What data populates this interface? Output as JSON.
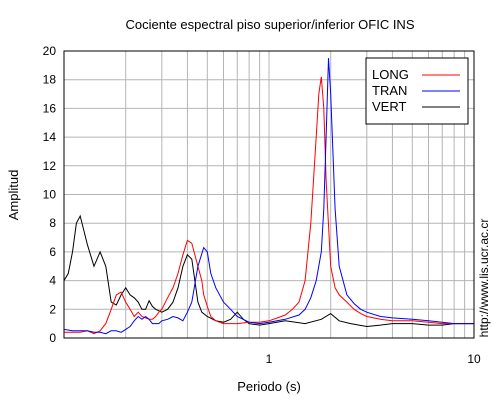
{
  "chart_data": {
    "type": "line",
    "title": "Cociente espectral piso superior/inferior  OFIC INS",
    "xlabel": "Periodo (s)",
    "ylabel": "Amplitud",
    "xscale": "log",
    "xlim": [
      0.1,
      10
    ],
    "ylim": [
      0,
      20
    ],
    "x_tick_labels": [
      "1",
      "10"
    ],
    "y_tick_labels": [
      "0",
      "2",
      "4",
      "6",
      "8",
      "10",
      "12",
      "14",
      "16",
      "18",
      "20"
    ],
    "grid": true,
    "legend_position": "top-right",
    "side_text": "http://www.lis.ucr.ac.cr",
    "series": [
      {
        "name": "LONG",
        "color": "#ff0000",
        "x": [
          0.1,
          0.11,
          0.12,
          0.13,
          0.14,
          0.15,
          0.16,
          0.17,
          0.18,
          0.19,
          0.2,
          0.21,
          0.22,
          0.23,
          0.24,
          0.25,
          0.26,
          0.27,
          0.28,
          0.29,
          0.3,
          0.32,
          0.34,
          0.36,
          0.38,
          0.4,
          0.42,
          0.45,
          0.47,
          0.48,
          0.5,
          0.52,
          0.55,
          0.6,
          0.65,
          0.7,
          0.8,
          0.9,
          1.0,
          1.1,
          1.2,
          1.3,
          1.4,
          1.5,
          1.6,
          1.7,
          1.75,
          1.8,
          1.85,
          1.9,
          2.0,
          2.1,
          2.2,
          2.4,
          2.6,
          2.8,
          3.0,
          3.5,
          4.0,
          5.0,
          6.0,
          7.0,
          8.0,
          9.0,
          10.0
        ],
        "y": [
          0.4,
          0.4,
          0.4,
          0.5,
          0.3,
          0.5,
          1.0,
          2.0,
          3.0,
          3.2,
          2.5,
          2.0,
          1.5,
          1.8,
          1.5,
          1.4,
          1.3,
          1.3,
          1.5,
          1.8,
          2.0,
          2.8,
          3.5,
          4.5,
          5.8,
          6.8,
          6.6,
          5.0,
          4.0,
          3.0,
          2.2,
          1.5,
          1.2,
          1.0,
          1.0,
          1.0,
          1.1,
          1.1,
          1.2,
          1.4,
          1.6,
          2.0,
          2.5,
          4.0,
          8.0,
          14.0,
          17.0,
          18.2,
          16.0,
          11.0,
          5.0,
          3.5,
          3.0,
          2.5,
          2.0,
          1.7,
          1.5,
          1.3,
          1.2,
          1.2,
          1.1,
          1.0,
          1.0,
          1.0,
          1.0
        ]
      },
      {
        "name": "TRAN",
        "color": "#0000ff",
        "x": [
          0.1,
          0.11,
          0.12,
          0.13,
          0.14,
          0.15,
          0.16,
          0.17,
          0.18,
          0.19,
          0.2,
          0.21,
          0.22,
          0.23,
          0.24,
          0.25,
          0.26,
          0.27,
          0.28,
          0.29,
          0.3,
          0.32,
          0.34,
          0.36,
          0.38,
          0.4,
          0.42,
          0.45,
          0.48,
          0.5,
          0.52,
          0.55,
          0.6,
          0.65,
          0.7,
          0.8,
          0.9,
          1.0,
          1.2,
          1.4,
          1.5,
          1.6,
          1.7,
          1.8,
          1.85,
          1.9,
          1.95,
          2.0,
          2.05,
          2.1,
          2.2,
          2.4,
          2.6,
          2.8,
          3.0,
          3.5,
          4.0,
          5.0,
          6.0,
          7.0,
          8.0,
          9.0,
          10.0
        ],
        "y": [
          0.6,
          0.5,
          0.5,
          0.5,
          0.4,
          0.4,
          0.3,
          0.5,
          0.5,
          0.4,
          0.6,
          0.8,
          1.2,
          1.5,
          1.3,
          1.5,
          1.3,
          1.0,
          1.0,
          1.0,
          1.2,
          1.3,
          1.5,
          1.4,
          1.2,
          1.8,
          2.5,
          5.0,
          6.3,
          6.0,
          4.5,
          3.5,
          2.5,
          2.0,
          1.5,
          1.1,
          1.0,
          1.1,
          1.3,
          1.6,
          2.0,
          2.8,
          4.0,
          6.0,
          9.0,
          14.0,
          19.5,
          17.0,
          13.0,
          9.0,
          5.0,
          3.0,
          2.4,
          2.0,
          1.8,
          1.5,
          1.4,
          1.3,
          1.2,
          1.1,
          1.0,
          1.0,
          1.0
        ]
      },
      {
        "name": "VERT",
        "color": "#000000",
        "x": [
          0.1,
          0.105,
          0.11,
          0.115,
          0.12,
          0.13,
          0.14,
          0.15,
          0.16,
          0.17,
          0.18,
          0.19,
          0.2,
          0.21,
          0.22,
          0.23,
          0.24,
          0.25,
          0.26,
          0.27,
          0.28,
          0.3,
          0.32,
          0.34,
          0.36,
          0.38,
          0.4,
          0.42,
          0.45,
          0.47,
          0.5,
          0.55,
          0.6,
          0.65,
          0.7,
          0.75,
          0.8,
          0.9,
          1.0,
          1.2,
          1.5,
          1.8,
          2.0,
          2.2,
          2.5,
          3.0,
          3.5,
          4.0,
          5.0,
          6.0,
          7.0,
          8.0,
          9.0,
          10.0
        ],
        "y": [
          4.0,
          4.5,
          6.0,
          8.0,
          8.5,
          6.5,
          5.0,
          6.0,
          5.0,
          2.5,
          2.3,
          3.0,
          3.5,
          3.0,
          2.8,
          2.5,
          2.0,
          2.0,
          2.6,
          2.2,
          2.0,
          1.8,
          2.0,
          2.5,
          3.5,
          5.0,
          5.8,
          5.5,
          2.5,
          1.8,
          1.5,
          1.2,
          1.1,
          1.3,
          1.8,
          1.3,
          1.0,
          0.9,
          1.0,
          1.2,
          1.0,
          1.3,
          1.7,
          1.2,
          1.0,
          0.8,
          0.9,
          1.0,
          1.0,
          0.9,
          0.9,
          1.0,
          1.0,
          1.0
        ]
      }
    ]
  }
}
